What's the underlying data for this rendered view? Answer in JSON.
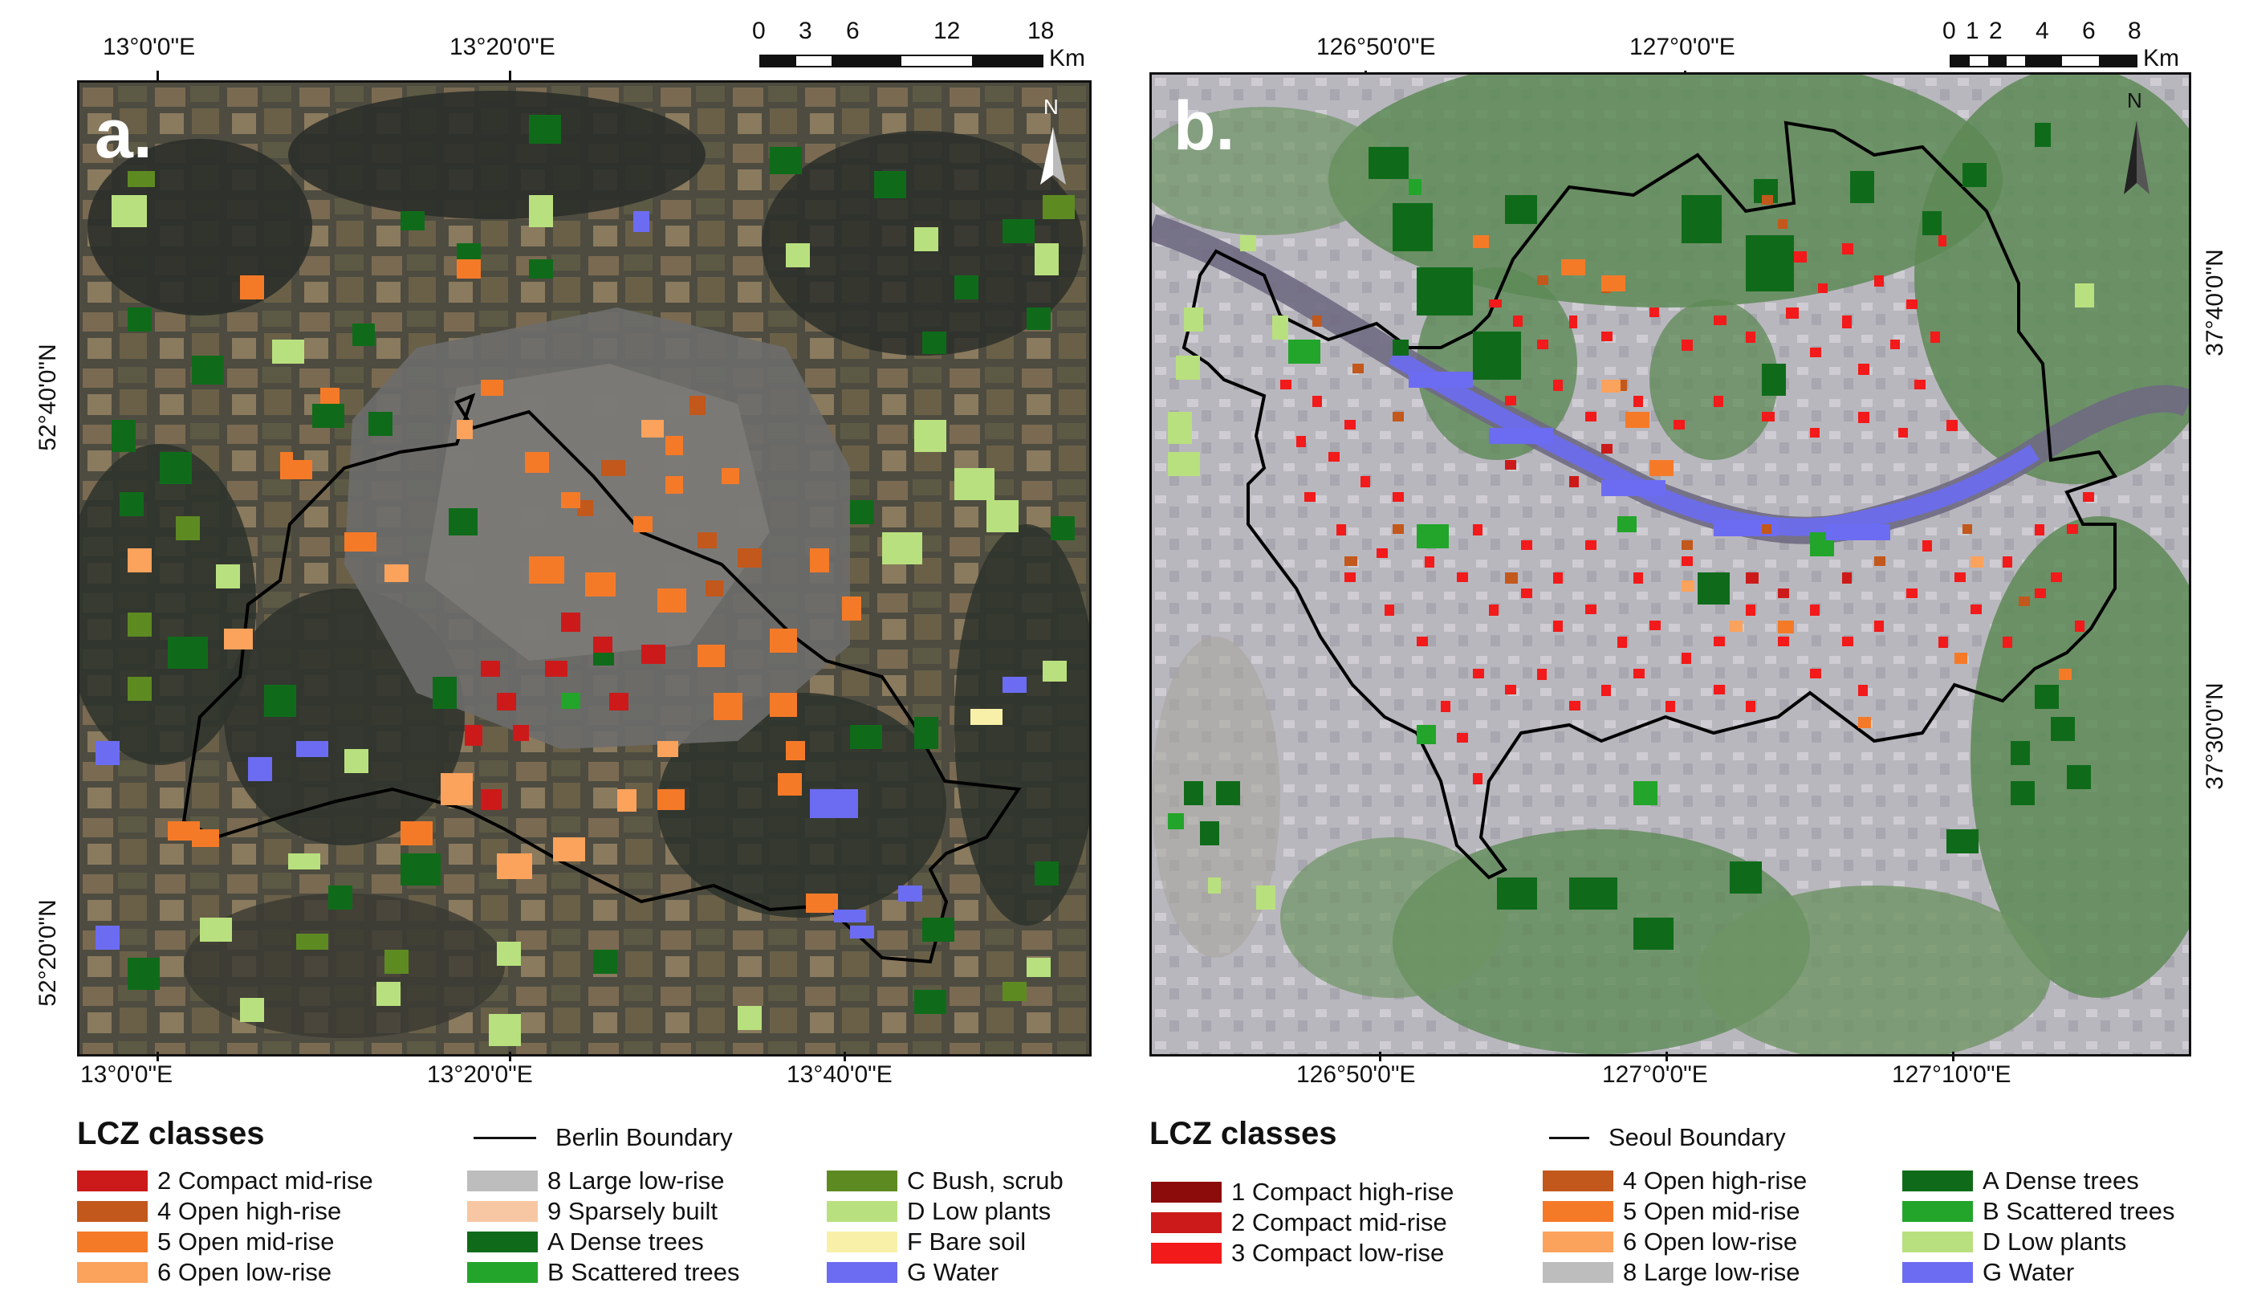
{
  "panels": [
    {
      "letter": "a.",
      "top_coords": [
        "13°0'0\"E",
        "13°20'0\"E"
      ],
      "bottom_coords": [
        "13°0'0\"E",
        "13°20'0\"E",
        "13°40'0\"E"
      ],
      "left_coords": [
        "52°40'0\"N",
        "52°20'0\"N"
      ],
      "scale_labels": [
        "0",
        "3",
        "6",
        "12",
        "18"
      ],
      "scale_unit": "Km",
      "north_label": "N"
    },
    {
      "letter": "b.",
      "top_coords": [
        "126°50'0\"E",
        "127°0'0\"E"
      ],
      "bottom_coords": [
        "126°50'0\"E",
        "127°0'0\"E",
        "127°10'0\"E"
      ],
      "right_coords": [
        "37°40'0\"N",
        "37°30'0\"N"
      ],
      "scale_labels": [
        "0",
        "1",
        "2",
        "4",
        "6",
        "8"
      ],
      "scale_unit": "Km",
      "north_label": "N"
    }
  ],
  "legend_left": {
    "title": "LCZ classes",
    "boundary_label": "Berlin Boundary",
    "col1": [
      {
        "label": "2 Compact mid-rise",
        "color": "#cc1a1a"
      },
      {
        "label": "4 Open high-rise",
        "color": "#c2581c"
      },
      {
        "label": "5 Open mid-rise",
        "color": "#f57a28"
      },
      {
        "label": "6 Open low-rise",
        "color": "#fba25c"
      }
    ],
    "col2": [
      {
        "label": "8 Large low-rise",
        "color": "#bdbdbd"
      },
      {
        "label": "9 Sparsely built",
        "color": "#f7c7a3"
      },
      {
        "label": "A Dense trees",
        "color": "#0f6b1a"
      },
      {
        "label": "B Scattered trees",
        "color": "#22a52a"
      }
    ],
    "col3": [
      {
        "label": "C Bush, scrub",
        "color": "#5e8a22"
      },
      {
        "label": "D Low plants",
        "color": "#b9e07e"
      },
      {
        "label": "F Bare soil",
        "color": "#f8f0a8"
      },
      {
        "label": "G Water",
        "color": "#6c6cf2"
      }
    ]
  },
  "legend_right": {
    "title": "LCZ classes",
    "boundary_label": "Seoul Boundary",
    "col1": [
      {
        "label": "1 Compact high-rise",
        "color": "#8c0c0c"
      },
      {
        "label": "2 Compact mid-rise",
        "color": "#cc1a1a"
      },
      {
        "label": "3 Compact low-rise",
        "color": "#f21a1a"
      }
    ],
    "col2": [
      {
        "label": "4 Open high-rise",
        "color": "#c2581c"
      },
      {
        "label": "5 Open mid-rise",
        "color": "#f57a28"
      },
      {
        "label": "6 Open low-rise",
        "color": "#fba25c"
      },
      {
        "label": "8 Large low-rise",
        "color": "#bdbdbd"
      }
    ],
    "col3": [
      {
        "label": "A Dense trees",
        "color": "#0f6b1a"
      },
      {
        "label": "B Scattered trees",
        "color": "#22a52a"
      },
      {
        "label": "D Low plants",
        "color": "#b9e07e"
      },
      {
        "label": "G Water",
        "color": "#6c6cf2"
      }
    ]
  }
}
